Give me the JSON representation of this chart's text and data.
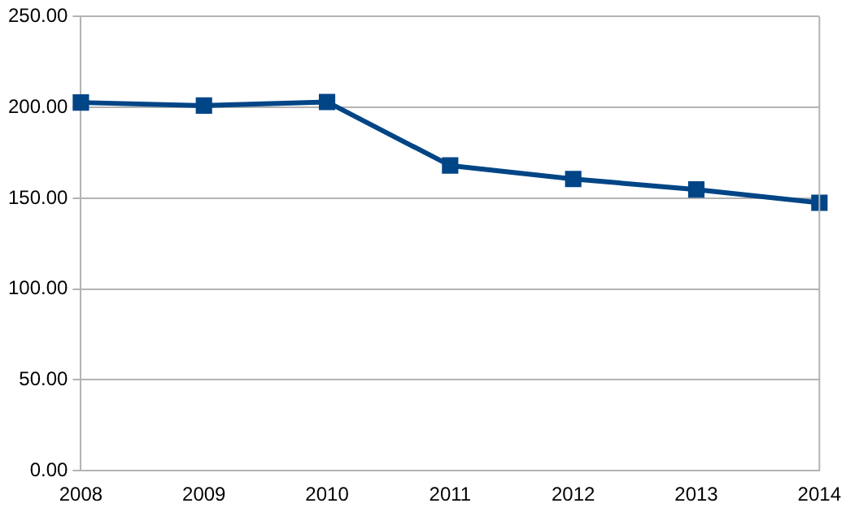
{
  "chart_data": {
    "type": "line",
    "categories": [
      "2008",
      "2009",
      "2010",
      "2011",
      "2012",
      "2013",
      "2014"
    ],
    "series": [
      {
        "color": "#004586",
        "values": [
          202.7,
          201,
          203,
          168,
          160.6,
          154.8,
          147.5
        ]
      }
    ],
    "ylim": [
      0,
      250
    ],
    "yticks": [
      {
        "value": 0,
        "label": "0.00"
      },
      {
        "value": 50,
        "label": "50.00"
      },
      {
        "value": 100,
        "label": "100.00"
      },
      {
        "value": 150,
        "label": "150.00"
      },
      {
        "value": 200,
        "label": "200.00"
      },
      {
        "value": 250,
        "label": "250.00"
      }
    ],
    "grid": "y",
    "legend": false,
    "marker": "square",
    "line_style": "solid"
  }
}
